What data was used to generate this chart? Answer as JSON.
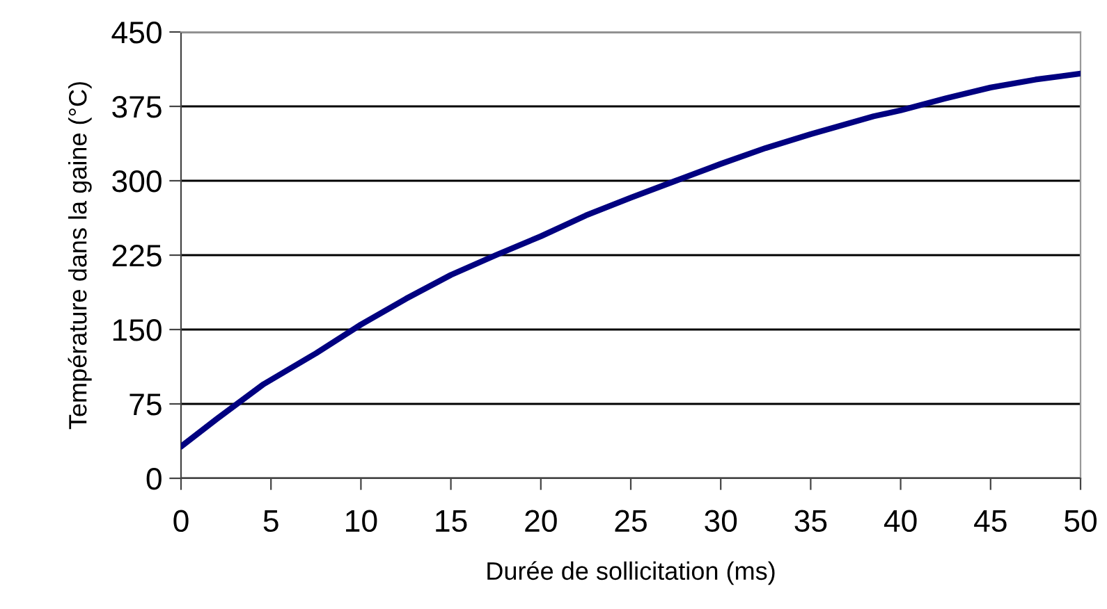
{
  "chart_data": {
    "type": "line",
    "xlabel": "Durée de sollicitation (ms)",
    "ylabel": "Température dans la gaine (°C)",
    "x": [
      0,
      2,
      4.6,
      7.5,
      10,
      12.5,
      15,
      17.5,
      20,
      22.5,
      25,
      27.5,
      30,
      32.5,
      35,
      38.5,
      40,
      42.5,
      45,
      47.5,
      50
    ],
    "series": [
      {
        "color": "#000080",
        "values": [
          32,
          60,
          95,
          126,
          155,
          181,
          205,
          225,
          244,
          265,
          283,
          300,
          317,
          333,
          347,
          365,
          371,
          383,
          394,
          402,
          408
        ]
      }
    ],
    "xlim": [
      0,
      50
    ],
    "xticks": [
      0,
      5,
      10,
      15,
      20,
      25,
      30,
      35,
      40,
      45,
      50
    ],
    "ylim": [
      0,
      450
    ],
    "yticks": [
      0,
      75,
      150,
      225,
      300,
      375,
      450
    ],
    "grid": "y",
    "marker": "none",
    "line_style": "solid"
  }
}
